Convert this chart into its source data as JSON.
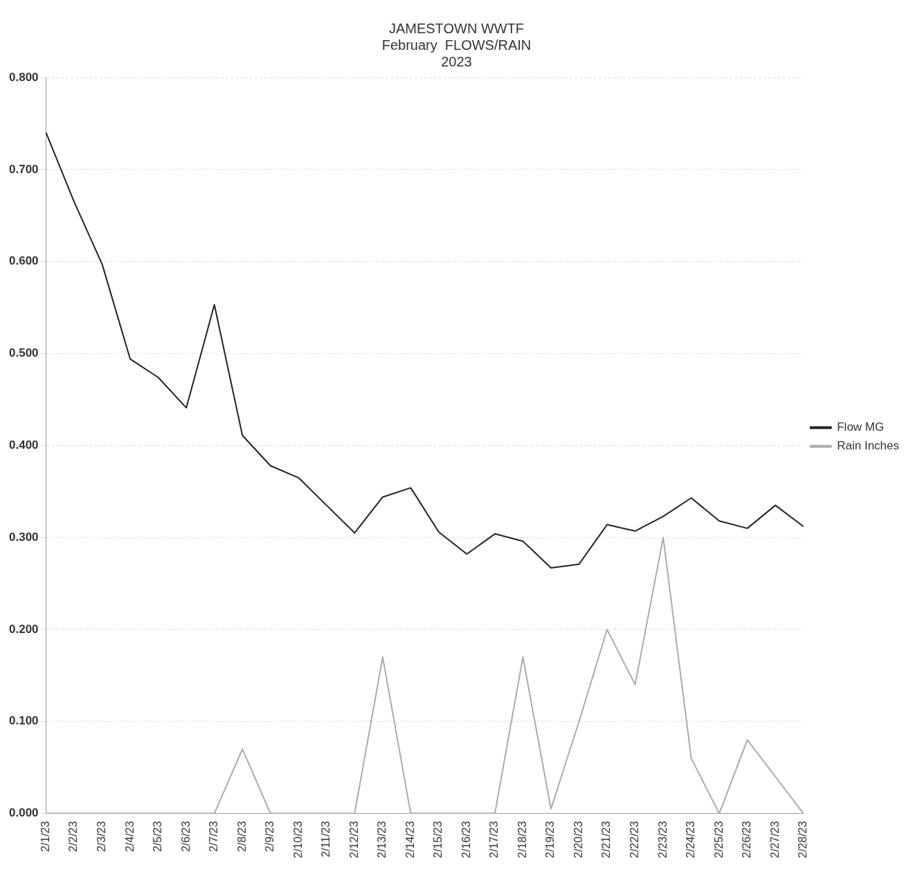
{
  "chart_data": {
    "type": "line",
    "title": "JAMESTOWN WWTF\nFebruary  FLOWS/RAIN\n2023",
    "categories": [
      "2/1/23",
      "2/2/23",
      "2/3/23",
      "2/4/23",
      "2/5/23",
      "2/6/23",
      "2/7/23",
      "2/8/23",
      "2/9/23",
      "2/10/23",
      "2/11/23",
      "2/12/23",
      "2/13/23",
      "2/14/23",
      "2/15/23",
      "2/16/23",
      "2/17/23",
      "2/18/23",
      "2/19/23",
      "2/20/23",
      "2/21/23",
      "2/22/23",
      "2/23/23",
      "2/24/23",
      "2/25/23",
      "2/26/23",
      "2/27/23",
      "2/28/23"
    ],
    "series": [
      {
        "name": "Flow MG",
        "color": "#222222",
        "values": [
          0.74,
          0.665,
          0.597,
          0.494,
          0.474,
          0.441,
          0.553,
          0.411,
          0.378,
          0.365,
          0.335,
          0.305,
          0.344,
          0.354,
          0.306,
          0.282,
          0.304,
          0.296,
          0.267,
          0.271,
          0.314,
          0.307,
          0.323,
          0.343,
          0.318,
          0.31,
          0.335,
          0.312
        ]
      },
      {
        "name": "Rain Inches",
        "color": "#aaaaaa",
        "values": [
          0,
          0,
          0,
          0,
          0,
          0,
          0,
          0.07,
          0,
          0,
          0,
          0,
          0.17,
          0,
          0,
          0,
          0,
          0.17,
          0.005,
          0.1,
          0.2,
          0.14,
          0.3,
          0.06,
          0,
          0.08,
          0.04,
          0
        ]
      }
    ],
    "ylim": [
      0,
      0.8
    ],
    "yticks": [
      {
        "value": 0,
        "label": "0.000"
      },
      {
        "value": 0.1,
        "label": "0.100"
      },
      {
        "value": 0.2,
        "label": "0.200"
      },
      {
        "value": 0.3,
        "label": "0.300"
      },
      {
        "value": 0.4,
        "label": "0.400"
      },
      {
        "value": 0.5,
        "label": "0.500"
      },
      {
        "value": 0.6,
        "label": "0.600"
      },
      {
        "value": 0.7,
        "label": "0.700"
      },
      {
        "value": 0.8,
        "label": "0.800"
      }
    ],
    "grid": "y",
    "legend": "right",
    "marker": "none",
    "line_style": "solid"
  }
}
